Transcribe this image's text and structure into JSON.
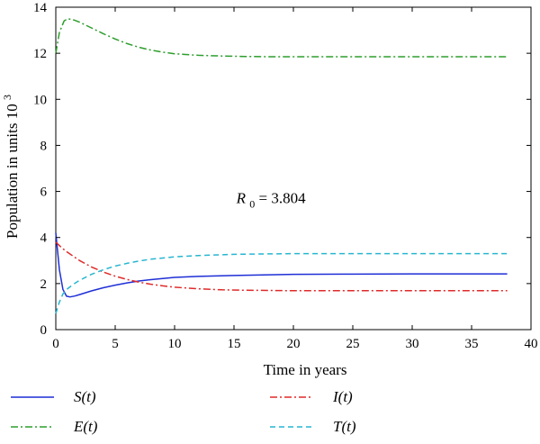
{
  "chart_data": {
    "type": "line",
    "title": "",
    "xlabel": "Time in years",
    "ylabel": "Population in units 10",
    "ylabel_superscript": "3",
    "xlim": [
      0,
      40
    ],
    "ylim": [
      0,
      14
    ],
    "xticks": [
      0,
      5,
      10,
      15,
      20,
      25,
      30,
      35,
      40
    ],
    "yticks": [
      0,
      2,
      4,
      6,
      8,
      10,
      12,
      14
    ],
    "grid": false,
    "legend_position": "bottom",
    "annotation": {
      "main": "R",
      "sub": "0",
      "rest": " = 3.804",
      "x": 15.2,
      "y": 5.5
    },
    "series": [
      {
        "name": "S(t)",
        "color": "#1f2fd6",
        "dash": "solid",
        "x": [
          0,
          0.3,
          0.6,
          0.9,
          1.2,
          1.6,
          2,
          3,
          4,
          5,
          6,
          7,
          8,
          10,
          12,
          15,
          18,
          20,
          25,
          30,
          35,
          38
        ],
        "y": [
          4.2,
          2.6,
          1.75,
          1.45,
          1.42,
          1.46,
          1.52,
          1.68,
          1.82,
          1.93,
          2.03,
          2.11,
          2.17,
          2.27,
          2.31,
          2.35,
          2.38,
          2.4,
          2.41,
          2.42,
          2.42,
          2.42
        ]
      },
      {
        "name": "E(t)",
        "color": "#2e9e2e",
        "dash": "dashdot",
        "x": [
          0,
          0.3,
          0.7,
          1,
          1.5,
          2,
          3,
          4,
          5,
          6,
          7,
          8,
          9,
          10,
          12,
          14,
          16,
          18,
          20,
          25,
          30,
          35,
          38
        ],
        "y": [
          12,
          12.9,
          13.4,
          13.5,
          13.45,
          13.35,
          13.1,
          12.85,
          12.62,
          12.42,
          12.26,
          12.14,
          12.05,
          11.98,
          11.91,
          11.88,
          11.86,
          11.85,
          11.85,
          11.85,
          11.85,
          11.85,
          11.85
        ]
      },
      {
        "name": "I(t)",
        "color": "#e02a2a",
        "dash": "dashdot",
        "x": [
          0,
          0.5,
          1,
          2,
          3,
          4,
          5,
          6,
          7,
          8,
          9,
          10,
          12,
          14,
          16,
          18,
          20,
          25,
          30,
          35,
          38
        ],
        "y": [
          3.8,
          3.55,
          3.35,
          3.0,
          2.72,
          2.5,
          2.32,
          2.18,
          2.06,
          1.97,
          1.9,
          1.84,
          1.77,
          1.73,
          1.71,
          1.7,
          1.69,
          1.69,
          1.69,
          1.69,
          1.69
        ]
      },
      {
        "name": "T(t)",
        "color": "#27b6d0",
        "dash": "dashed",
        "x": [
          0,
          0.3,
          0.6,
          1,
          1.5,
          2,
          3,
          4,
          5,
          6,
          7,
          8,
          10,
          12,
          15,
          18,
          20,
          25,
          30,
          35,
          38
        ],
        "y": [
          0.7,
          1.2,
          1.55,
          1.78,
          1.98,
          2.14,
          2.4,
          2.6,
          2.76,
          2.88,
          2.98,
          3.06,
          3.16,
          3.22,
          3.27,
          3.29,
          3.3,
          3.3,
          3.3,
          3.3,
          3.3
        ]
      }
    ]
  }
}
